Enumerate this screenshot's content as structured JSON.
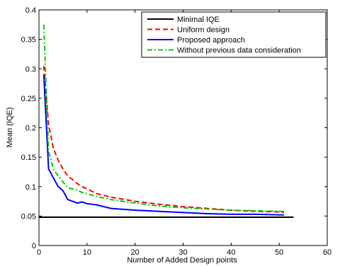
{
  "chart_data": {
    "type": "line",
    "title": "",
    "xlabel": "Number of Added Design points",
    "ylabel": "Mean (IQE)",
    "xlim": [
      0,
      60
    ],
    "ylim": [
      0,
      0.4
    ],
    "xticks": [
      0,
      10,
      20,
      30,
      40,
      50,
      60
    ],
    "xtick_labels": [
      "0",
      "10",
      "20",
      "30",
      "40",
      "50",
      "60"
    ],
    "yticks": [
      0,
      0.05,
      0.1,
      0.15,
      0.2,
      0.25,
      0.3,
      0.35,
      0.4
    ],
    "ytick_labels": [
      "0",
      "0.05",
      "0.1",
      "0.15",
      "0.2",
      "0.25",
      "0.3",
      "0.35",
      "0.4"
    ],
    "grid": false,
    "legend_position": "top-right",
    "series": [
      {
        "name": "Minimal IQE",
        "color": "#000000",
        "style": "solid",
        "x": [
          0,
          53
        ],
        "y": [
          0.048,
          0.048
        ]
      },
      {
        "name": "Uniform design",
        "color": "#ff0000",
        "style": "dashed",
        "x": [
          1,
          2,
          3,
          4,
          5,
          6,
          7,
          8,
          9,
          10,
          12,
          15,
          20,
          25,
          30,
          35,
          40,
          45,
          50,
          51
        ],
        "y": [
          0.305,
          0.205,
          0.165,
          0.145,
          0.13,
          0.118,
          0.112,
          0.105,
          0.1,
          0.096,
          0.088,
          0.082,
          0.075,
          0.07,
          0.066,
          0.063,
          0.06,
          0.058,
          0.057,
          0.056
        ]
      },
      {
        "name": "Proposed approach",
        "color": "#0000ff",
        "style": "solid",
        "x": [
          1,
          2,
          3,
          4,
          5,
          6,
          7,
          8,
          9,
          10,
          12,
          15,
          20,
          25,
          30,
          35,
          40,
          45,
          50,
          51
        ],
        "y": [
          0.29,
          0.13,
          0.115,
          0.1,
          0.093,
          0.078,
          0.075,
          0.072,
          0.074,
          0.071,
          0.069,
          0.063,
          0.06,
          0.058,
          0.056,
          0.054,
          0.053,
          0.053,
          0.052,
          0.052
        ]
      },
      {
        "name": "Without previous data consideration",
        "color": "#00cc00",
        "style": "dashdot",
        "x": [
          1,
          2,
          3,
          4,
          5,
          6,
          7,
          8,
          9,
          10,
          12,
          15,
          20,
          25,
          30,
          35,
          40,
          45,
          50,
          51
        ],
        "y": [
          0.375,
          0.16,
          0.13,
          0.118,
          0.108,
          0.098,
          0.096,
          0.094,
          0.09,
          0.088,
          0.083,
          0.078,
          0.072,
          0.067,
          0.064,
          0.062,
          0.06,
          0.059,
          0.058,
          0.058
        ]
      }
    ]
  }
}
